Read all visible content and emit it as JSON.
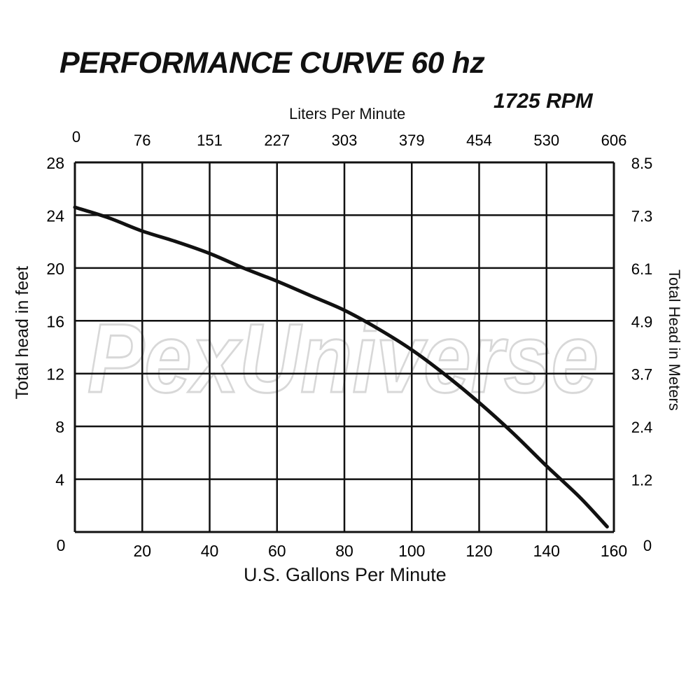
{
  "chart_data": {
    "type": "line",
    "title": "PERFORMANCE CURVE 60 hz",
    "subtitle": "1725 RPM",
    "xlabel": "U.S. Gallons Per Minute",
    "ylabel": "Total head in feet",
    "x2label": "Liters Per Minute",
    "y2label": "Total Head in Meters",
    "xlim": [
      0,
      160
    ],
    "ylim": [
      0,
      28
    ],
    "grid": true,
    "x_ticks": [
      "0",
      "20",
      "40",
      "60",
      "80",
      "100",
      "120",
      "140",
      "160"
    ],
    "y_ticks": [
      "0",
      "4",
      "8",
      "12",
      "16",
      "20",
      "24",
      "28"
    ],
    "x2_ticks": [
      "0",
      "76",
      "151",
      "227",
      "303",
      "379",
      "454",
      "530",
      "606"
    ],
    "y2_ticks": [
      "0",
      "1.2",
      "2.4",
      "3.7",
      "4.9",
      "6.1",
      "7.3",
      "8.5"
    ],
    "series": [
      {
        "name": "Performance curve",
        "x": [
          0,
          10,
          20,
          30,
          40,
          50,
          60,
          70,
          80,
          90,
          100,
          110,
          120,
          130,
          140,
          150,
          158
        ],
        "y": [
          24.6,
          23.8,
          22.8,
          22.0,
          21.1,
          20.0,
          19.0,
          17.9,
          16.8,
          15.4,
          13.8,
          11.9,
          9.8,
          7.5,
          5.0,
          2.6,
          0.4
        ]
      }
    ]
  },
  "watermark": "PexUniverse",
  "colors": {
    "line": "#111111",
    "grid": "#111111",
    "watermark": "#d8d8d8"
  }
}
